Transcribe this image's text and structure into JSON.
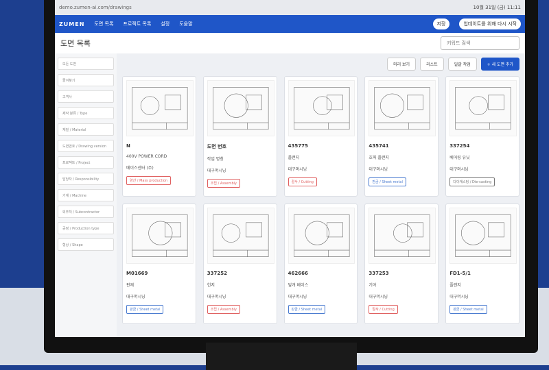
{
  "browser": {
    "url": "demo.zumen-ai.com/drawings",
    "clock": "10월 31일 (금) 11:11"
  },
  "nav": {
    "logo": "ZUMEN",
    "items": [
      "도면 목록",
      "프로젝트 목록",
      "설정",
      "도움말"
    ],
    "user": "저장",
    "update": "업데이트를 위해 다시 시작"
  },
  "header": {
    "title": "도면 목록",
    "search": "키워드 검색"
  },
  "toolbar": [
    "미리 보기",
    "리스트",
    "일괄 작업",
    "+ 새 도면 추가"
  ],
  "sidebar": [
    "모든 도면",
    "즐겨찾기",
    "고객사",
    "제작 분류 / Type",
    "재질 / Material",
    "도면번호 / Drawing version",
    "프로젝트 / Project",
    "담당자 / Responsibility",
    "기계 / Machine",
    "외주처 / Subcontractor",
    "공정 / Production type",
    "형상 / Shape"
  ],
  "cards": [
    {
      "number": "N",
      "name": "400V POWER CORD",
      "customer": "베이스센터 (주)",
      "tag": "양산 / Mass production",
      "tag_color": "#e06060"
    },
    {
      "number": "도면 번호",
      "name": "작업 명칭",
      "customer": "대구머시닝",
      "tag": "조립 / Assembly",
      "tag_color": "#e06060"
    },
    {
      "number": "435775",
      "name": "플랜지",
      "customer": "대구머시닝",
      "tag": "절삭 / Cutting",
      "tag_color": "#e06060"
    },
    {
      "number": "435741",
      "name": "호퍼 플랜지",
      "customer": "대구머시닝",
      "tag": "판금 / Sheet metal",
      "tag_color": "#4a7bd0"
    },
    {
      "number": "337254",
      "name": "베어링 유닛",
      "customer": "대구머시닝",
      "tag": "다이캐스팅 / Die-casting",
      "tag_color": "#777777"
    },
    {
      "number": "M01669",
      "name": "판재",
      "customer": "대구머시닝",
      "tag": "판금 / Sheet metal",
      "tag_color": "#4a7bd0"
    },
    {
      "number": "337252",
      "name": "힌지",
      "customer": "대구머시닝",
      "tag": "조립 / Assembly",
      "tag_color": "#e06060"
    },
    {
      "number": "462666",
      "name": "덮개 베이스",
      "customer": "대구머시닝",
      "tag": "판금 / Sheet metal",
      "tag_color": "#4a7bd0"
    },
    {
      "number": "337253",
      "name": "기어",
      "customer": "대구머시닝",
      "tag": "절삭 / Cutting",
      "tag_color": "#e06060"
    },
    {
      "number": "FD1-5/1",
      "name": "플랜지",
      "customer": "대구머시닝",
      "tag": "판금 / Sheet metal",
      "tag_color": "#4a7bd0"
    }
  ]
}
